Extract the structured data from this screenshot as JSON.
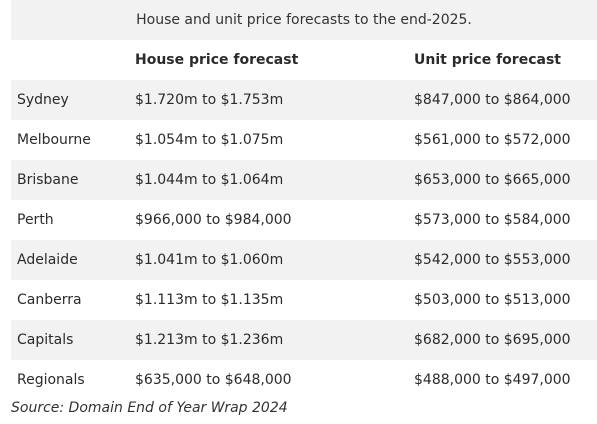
{
  "table": {
    "caption": "House and unit price forecasts to the end-2025.",
    "headers": {
      "city": "",
      "house": "House price forecast",
      "unit": "Unit price forecast"
    },
    "rows": [
      {
        "city": "Sydney",
        "house": "$1.720m to $1.753m",
        "unit": "$847,000 to $864,000"
      },
      {
        "city": "Melbourne",
        "house": "$1.054m to $1.075m",
        "unit": "$561,000 to $572,000"
      },
      {
        "city": "Brisbane",
        "house": "$1.044m to $1.064m",
        "unit": "$653,000 to $665,000"
      },
      {
        "city": "Perth",
        "house": "$966,000 to $984,000",
        "unit": "$573,000 to $584,000"
      },
      {
        "city": "Adelaide",
        "house": "$1.041m to $1.060m",
        "unit": "$542,000 to $553,000"
      },
      {
        "city": "Canberra",
        "house": "$1.113m to $1.135m",
        "unit": "$503,000 to $513,000"
      },
      {
        "city": "Capitals",
        "house": "$1.213m to $1.236m",
        "unit": "$682,000 to $695,000"
      },
      {
        "city": "Regionals",
        "house": "$635,000 to $648,000",
        "unit": "$488,000 to $497,000"
      }
    ]
  },
  "source": "Source: Domain End of Year Wrap 2024",
  "colors": {
    "shaded_row": "#f2f2f2",
    "text": "#2b2b2b"
  }
}
